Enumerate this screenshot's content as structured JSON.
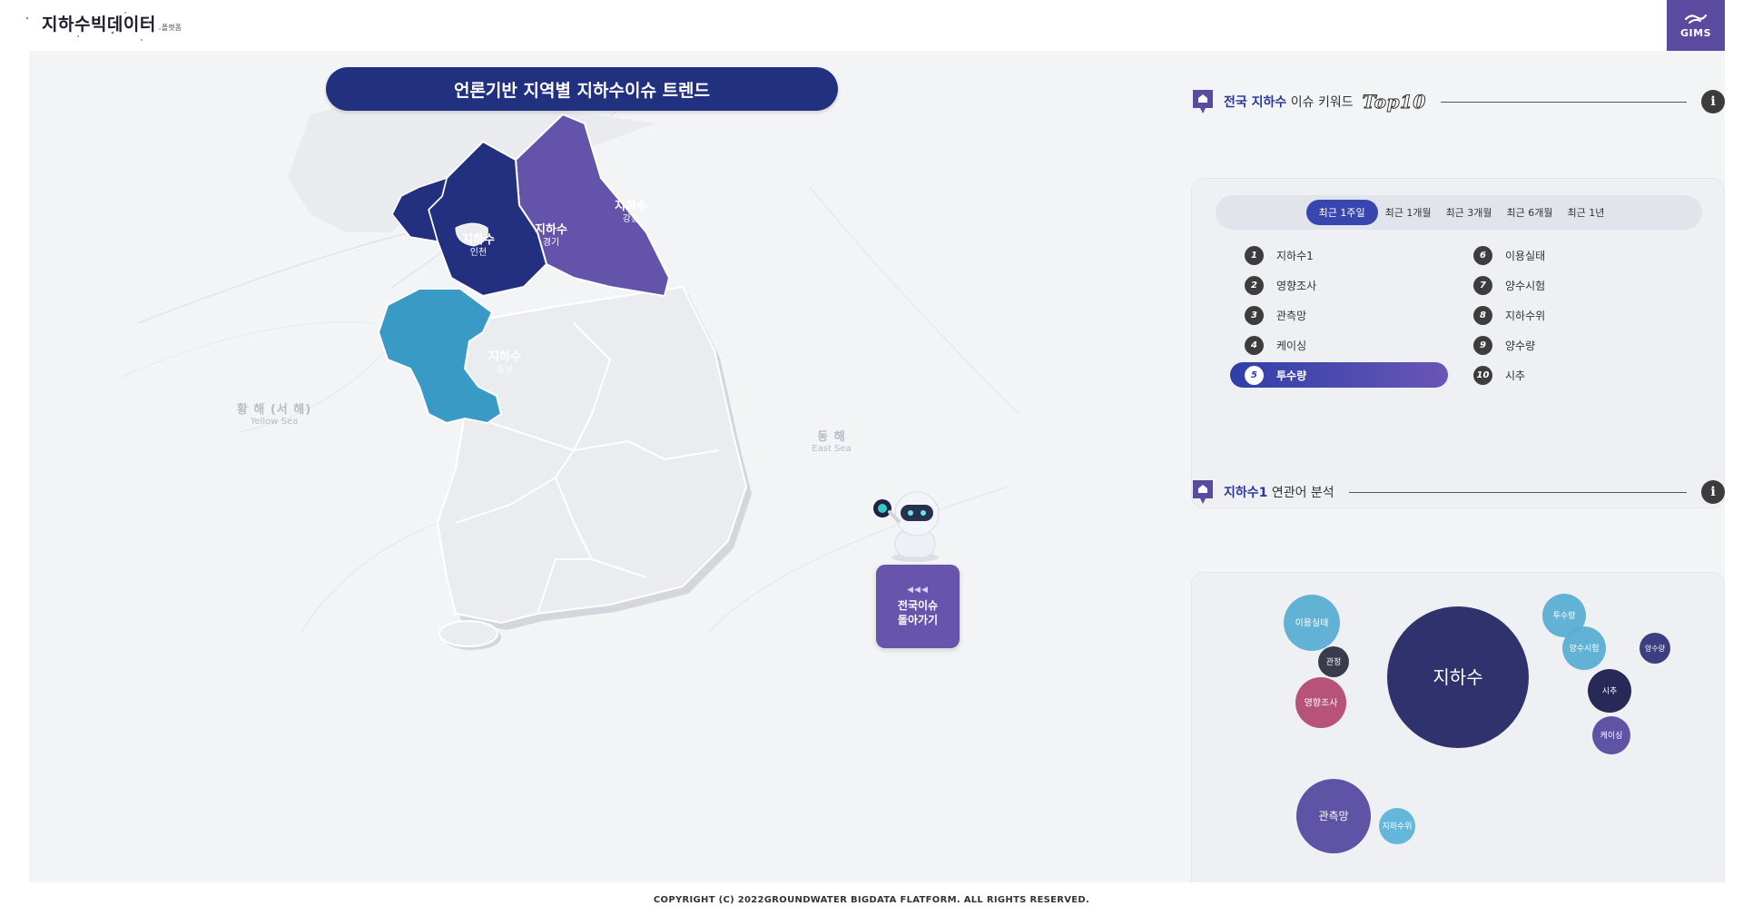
{
  "header": {
    "logo_title": "지하수빅데이터",
    "logo_sub": "플랫폼",
    "gims_label": "GIMS"
  },
  "map": {
    "title": "언론기반 지역별 지하수이슈 트렌드",
    "seas": {
      "west_ko": "황 해 (서 해)",
      "west_en": "Yellow Sea",
      "east_ko": "동 해",
      "east_en": "East Sea"
    },
    "regions": [
      {
        "keyword": "지하수",
        "name": "인천"
      },
      {
        "keyword": "지하수",
        "name": "경기"
      },
      {
        "keyword": "지하수",
        "name": "강원"
      },
      {
        "keyword": "지하수",
        "name": "충남"
      }
    ],
    "back_button": {
      "arrows": "◀◀◀",
      "line1": "전국이슈",
      "line2": "돌아가기"
    }
  },
  "keywords": {
    "title_highlight": "전국 지하수",
    "title_rest": " 이슈 키워드",
    "title_badge": "Top10",
    "tabs": [
      "최근 1주일",
      "최근 1개월",
      "최근 3개월",
      "최근 6개월",
      "최근 1년"
    ],
    "active_tab": 0,
    "items": [
      {
        "rank": "1",
        "text": "지하수1"
      },
      {
        "rank": "2",
        "text": "영향조사"
      },
      {
        "rank": "3",
        "text": "관측망"
      },
      {
        "rank": "4",
        "text": "케이싱"
      },
      {
        "rank": "5",
        "text": "투수량"
      },
      {
        "rank": "6",
        "text": "이용실태"
      },
      {
        "rank": "7",
        "text": "양수시험"
      },
      {
        "rank": "8",
        "text": "지하수위"
      },
      {
        "rank": "9",
        "text": "양수량"
      },
      {
        "rank": "10",
        "text": "시추"
      }
    ],
    "active_item": 4
  },
  "related": {
    "title_highlight": "지하수1",
    "title_rest": " 연관어 분석",
    "bubbles": [
      {
        "label": "지하수",
        "color": "#252766"
      },
      {
        "label": "이용실태",
        "color": "#5aaed3"
      },
      {
        "label": "관정",
        "color": "#2e3142"
      },
      {
        "label": "영향조사",
        "color": "#b24a6f"
      },
      {
        "label": "관측망",
        "color": "#554aa0"
      },
      {
        "label": "지하수위",
        "color": "#5cb3d8"
      },
      {
        "label": "투수량",
        "color": "#5aaed3"
      },
      {
        "label": "양수시험",
        "color": "#5aaed3"
      },
      {
        "label": "양수량",
        "color": "#33337a"
      },
      {
        "label": "시추",
        "color": "#1e1d4e"
      },
      {
        "label": "케이싱",
        "color": "#554aa0"
      }
    ]
  },
  "footer": {
    "copyright": "COPYRIGHT (C) 2022GROUNDWATER BIGDATA FLATFORM. ALL RIGHTS RESERVED."
  }
}
